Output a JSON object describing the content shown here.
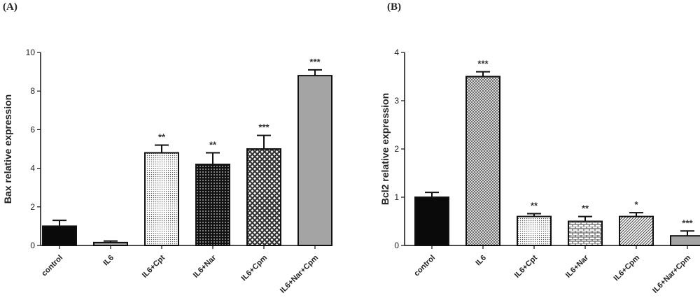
{
  "panels": {
    "a_label": "(A)",
    "b_label": "(B)"
  },
  "chart_data": [
    {
      "type": "bar",
      "ylabel": "Bax relative expression",
      "ylim": [
        0,
        10
      ],
      "yticks": [
        0,
        2,
        4,
        6,
        8,
        10
      ],
      "categories": [
        "control",
        "IL6",
        "IL6+Cpt",
        "IL6+Nar",
        "IL6+Cpm",
        "IL6+Nar+Cpm"
      ],
      "values": [
        1.0,
        0.15,
        4.8,
        4.2,
        5.0,
        8.8
      ],
      "errors": [
        0.3,
        0.08,
        0.4,
        0.6,
        0.7,
        0.3
      ],
      "significance": [
        "",
        "",
        "**",
        "**",
        "***",
        "***"
      ],
      "fills": [
        "solid-black",
        "solid-gray",
        "fine-dots",
        "black-dots",
        "crosshatch",
        "solid-gray"
      ]
    },
    {
      "type": "bar",
      "ylabel": "Bcl2 relative expression",
      "ylim": [
        0,
        4
      ],
      "yticks": [
        0,
        1,
        2,
        3,
        4
      ],
      "categories": [
        "control",
        "IL6",
        "IL6+Cpt",
        "IL6+Nar",
        "IL6+Cpm",
        "IL6+Nar+Cpm"
      ],
      "values": [
        1.0,
        3.5,
        0.6,
        0.5,
        0.6,
        0.2
      ],
      "errors": [
        0.1,
        0.1,
        0.06,
        0.1,
        0.08,
        0.1
      ],
      "significance": [
        "",
        "***",
        "**",
        "**",
        "*",
        "***"
      ],
      "fills": [
        "solid-black",
        "fine-check",
        "fine-dots",
        "brick",
        "diagonal",
        "solid-gray"
      ]
    }
  ]
}
